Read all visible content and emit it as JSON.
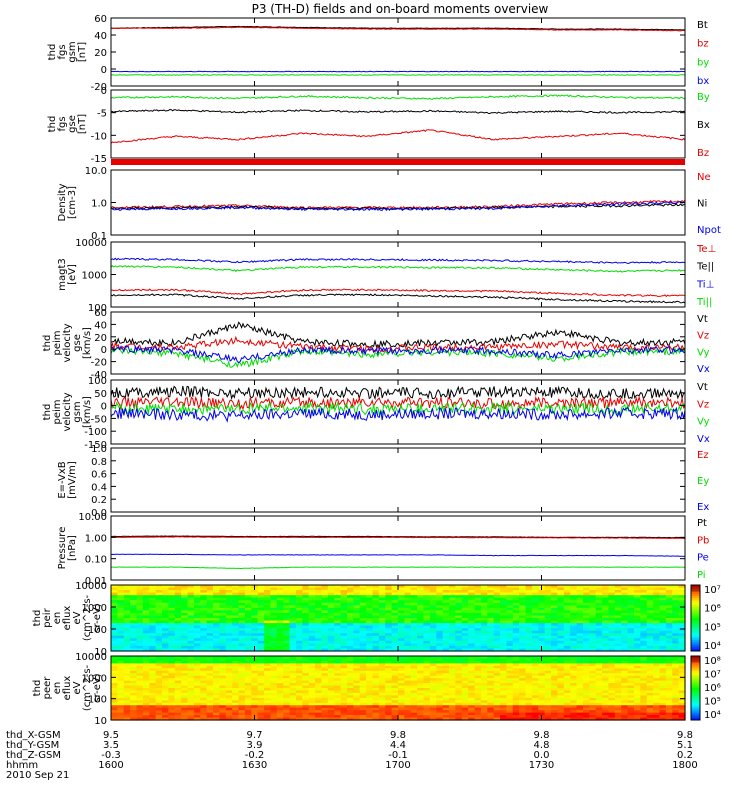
{
  "title": "P3 (TH-D) fields and on-board moments overview",
  "colors": {
    "black": "#000000",
    "red": "#e60000",
    "green": "#00dd00",
    "blue": "#0000ee"
  },
  "chart_data": [
    {
      "type": "line",
      "id": "fgs_gsm",
      "ylabel": [
        "thd",
        "fgs",
        "gsm",
        "[nT]"
      ],
      "ylim": [
        -20,
        60
      ],
      "ticks": [
        "60",
        "40",
        "20",
        "0",
        "-20"
      ],
      "series": [
        {
          "name": "Bt",
          "color": "black",
          "values": [
            48,
            49,
            50,
            49,
            48,
            48,
            48,
            47,
            47,
            46
          ]
        },
        {
          "name": "bz",
          "color": "red",
          "values": [
            48,
            48,
            49,
            48,
            47,
            47,
            47,
            46,
            46,
            45
          ]
        },
        {
          "name": "by",
          "color": "green",
          "values": [
            -7,
            -7,
            -7,
            -7,
            -7,
            -7,
            -7,
            -7,
            -7,
            -7
          ]
        },
        {
          "name": "bx",
          "color": "blue",
          "values": [
            -3,
            -3,
            -3,
            -3,
            -3,
            -3,
            -3,
            -3,
            -3,
            -3
          ]
        }
      ]
    },
    {
      "type": "line",
      "id": "fgs_gse",
      "ylabel": [
        "thd",
        "fgs",
        "gse",
        "[nT]"
      ],
      "ylim": [
        -18,
        4
      ],
      "ticks": [
        "0",
        "-5",
        "-10",
        "-15"
      ],
      "series": [
        {
          "name": "By",
          "color": "green",
          "values": [
            1.5,
            1.8,
            1.3,
            2.0,
            1.5,
            1.2,
            1.8,
            2.2,
            1.6,
            1.4
          ]
        },
        {
          "name": "Bx",
          "color": "black",
          "values": [
            -3.0,
            -2.5,
            -3.2,
            -2.6,
            -3.1,
            -2.8,
            -3.4,
            -2.9,
            -3.3,
            -3.0
          ]
        },
        {
          "name": "Bz",
          "color": "red",
          "values": [
            -13,
            -11,
            -12,
            -10,
            -11,
            -9,
            -12,
            -11,
            -10,
            -12
          ]
        }
      ]
    },
    {
      "type": "line",
      "id": "density",
      "ylabel": [
        "Density",
        "[cm-3]"
      ],
      "log": true,
      "ylim": [
        0.1,
        10
      ],
      "ticks": [
        "10.0",
        "1.0",
        "0.1"
      ],
      "series": [
        {
          "name": "Ne",
          "color": "red",
          "values": [
            0.7,
            0.75,
            0.8,
            0.7,
            0.7,
            0.7,
            0.75,
            0.9,
            1.0,
            1.1
          ]
        },
        {
          "name": "Ni",
          "color": "black",
          "values": [
            0.65,
            0.68,
            0.75,
            0.65,
            0.65,
            0.66,
            0.7,
            0.75,
            0.8,
            0.85
          ]
        },
        {
          "name": "Npot",
          "color": "blue",
          "values": [
            0.62,
            0.65,
            0.7,
            0.62,
            0.62,
            0.63,
            0.66,
            0.8,
            0.9,
            1.0
          ]
        }
      ]
    },
    {
      "type": "line",
      "id": "temps",
      "ylabel": [
        "magt3",
        "[eV]"
      ],
      "log": true,
      "ylim": [
        100,
        10000
      ],
      "ticks": [
        "10000",
        "1000",
        "100"
      ],
      "series": [
        {
          "name": "Te⊥",
          "color": "red",
          "values": [
            330,
            340,
            250,
            330,
            340,
            320,
            310,
            260,
            230,
            220
          ]
        },
        {
          "name": "Te||",
          "color": "black",
          "values": [
            230,
            240,
            180,
            230,
            240,
            220,
            200,
            170,
            150,
            140
          ]
        },
        {
          "name": "Ti⊥",
          "color": "blue",
          "values": [
            3000,
            2900,
            2400,
            2900,
            2900,
            2800,
            2700,
            2500,
            2300,
            2400
          ]
        },
        {
          "name": "Ti||",
          "color": "green",
          "values": [
            1800,
            1700,
            1300,
            1700,
            1700,
            1650,
            1600,
            1400,
            1250,
            1350
          ]
        }
      ]
    },
    {
      "type": "line",
      "id": "peim_gse",
      "ylabel": [
        "thd",
        "peim",
        "velocity",
        "gse",
        "[km/s]"
      ],
      "ylim": [
        -45,
        65
      ],
      "ticks": [
        "60",
        "40",
        "20",
        "0",
        "-20",
        "-40"
      ],
      "series": [
        {
          "name": "Vt",
          "color": "black",
          "values": [
            15,
            10,
            42,
            12,
            8,
            10,
            12,
            30,
            10,
            12
          ]
        },
        {
          "name": "Vz",
          "color": "red",
          "values": [
            5,
            2,
            15,
            3,
            0,
            2,
            3,
            8,
            2,
            3
          ]
        },
        {
          "name": "Vy",
          "color": "green",
          "values": [
            -5,
            -8,
            -30,
            -5,
            -10,
            -6,
            -8,
            -18,
            -6,
            -5
          ]
        },
        {
          "name": "Vx",
          "color": "blue",
          "values": [
            0,
            -3,
            -20,
            -2,
            -5,
            -3,
            -4,
            -12,
            -3,
            -2
          ]
        }
      ]
    },
    {
      "type": "line",
      "id": "peim_gsm",
      "ylabel": [
        "thd",
        "peim",
        "velocity",
        "gsm",
        "[km/s]"
      ],
      "ylim": [
        -150,
        100
      ],
      "ticks": [
        "100",
        "50",
        "0",
        "-50",
        "-100",
        "-150"
      ],
      "series": [
        {
          "name": "Vt",
          "color": "black",
          "values": [
            50,
            55,
            50,
            52,
            50,
            48,
            55,
            50,
            45,
            50
          ]
        },
        {
          "name": "Vz",
          "color": "red",
          "values": [
            10,
            12,
            8,
            10,
            12,
            10,
            8,
            10,
            12,
            10
          ]
        },
        {
          "name": "Vy",
          "color": "green",
          "values": [
            -10,
            -15,
            -12,
            -10,
            -14,
            -12,
            -10,
            -12,
            -15,
            -10
          ]
        },
        {
          "name": "Vx",
          "color": "blue",
          "values": [
            -30,
            -35,
            -40,
            -30,
            -35,
            -32,
            -30,
            -35,
            -30,
            -30
          ]
        }
      ]
    },
    {
      "type": "line",
      "id": "efield",
      "ylabel": [
        "E=-VxB",
        "[mV/m]"
      ],
      "ylim": [
        0,
        1
      ],
      "ticks": [
        "1.0",
        "0.8",
        "0.6",
        "0.4",
        "0.2",
        "0.0"
      ],
      "series": [
        {
          "name": "Ez",
          "color": "red",
          "values": []
        },
        {
          "name": "Ey",
          "color": "green",
          "values": []
        },
        {
          "name": "Ex",
          "color": "blue",
          "values": []
        }
      ]
    },
    {
      "type": "line",
      "id": "pressure",
      "ylabel": [
        "Pressure",
        "[nPa]"
      ],
      "log": true,
      "ylim": [
        0.01,
        10
      ],
      "ticks": [
        "10.00",
        "1.00",
        "0.10",
        "0.01"
      ],
      "series": [
        {
          "name": "Pt",
          "color": "black",
          "values": [
            1.1,
            1.15,
            1.1,
            1.1,
            1.1,
            1.05,
            1.05,
            1.0,
            1.0,
            0.98
          ]
        },
        {
          "name": "Pb",
          "color": "red",
          "values": [
            1.0,
            1.05,
            1.02,
            1.0,
            1.0,
            0.98,
            0.97,
            0.95,
            0.93,
            0.9
          ]
        },
        {
          "name": "Pe",
          "color": "blue",
          "values": [
            0.16,
            0.16,
            0.15,
            0.15,
            0.15,
            0.15,
            0.14,
            0.14,
            0.14,
            0.13
          ]
        },
        {
          "name": "Pi",
          "color": "green",
          "values": [
            0.04,
            0.04,
            0.035,
            0.04,
            0.04,
            0.04,
            0.04,
            0.04,
            0.04,
            0.04
          ]
        }
      ]
    },
    {
      "type": "heatmap",
      "id": "peir",
      "ylabel": [
        "thd",
        "peir",
        "en",
        "eflux",
        "eV",
        "(cm^2-s-",
        "sr-eV)"
      ],
      "log": true,
      "ylim": [
        7,
        20000
      ],
      "ticks": [
        "10000",
        "1000",
        "100",
        "10"
      ],
      "colorbar": [
        "10⁷",
        "10⁶",
        "10⁵",
        "10⁴"
      ]
    },
    {
      "type": "heatmap",
      "id": "peer",
      "ylabel": [
        "thd",
        "peer",
        "en",
        "eflux",
        "eV",
        "(cm^2-s-",
        "sr-eV)"
      ],
      "log": true,
      "ylim": [
        7,
        20000
      ],
      "ticks": [
        "10000",
        "1000",
        "100",
        "10"
      ],
      "colorbar": [
        "10⁸",
        "10⁷",
        "10⁶",
        "10⁵",
        "10⁴"
      ]
    }
  ],
  "axis": {
    "labels": [
      "thd_X-GSM",
      "thd_Y-GSM",
      "thd_Z-GSM",
      "hhmm",
      "2010 Sep 21"
    ],
    "columns": [
      [
        "9.5",
        "3.5",
        "-0.3",
        "1600"
      ],
      [
        "9.7",
        "3.9",
        "-0.2",
        "1630"
      ],
      [
        "9.8",
        "4.4",
        "-0.1",
        "1700"
      ],
      [
        "9.8",
        "4.8",
        "0.0",
        "1730"
      ],
      [
        "9.8",
        "5.1",
        "0.2",
        "1800"
      ]
    ]
  }
}
